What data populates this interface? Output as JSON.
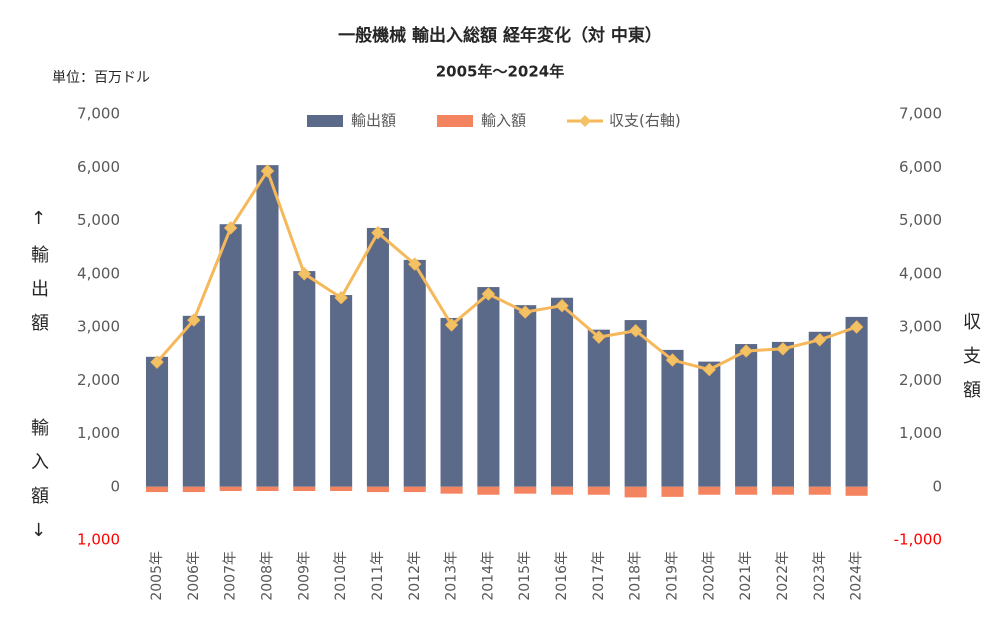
{
  "chart_data": {
    "type": "bar",
    "title": "一般機械 輸出入総額 経年変化（対 中東）",
    "subtitle": "2005年～2024年",
    "unit_label": "単位：百万ドル",
    "y_label_top": "↑輸出額",
    "y_label_bottom": "輸入額↓",
    "y2_label": "収支額",
    "categories": [
      "2005年",
      "2006年",
      "2007年",
      "2008年",
      "2009年",
      "2010年",
      "2011年",
      "2012年",
      "2013年",
      "2014年",
      "2015年",
      "2016年",
      "2017年",
      "2018年",
      "2019年",
      "2020年",
      "2021年",
      "2022年",
      "2023年",
      "2024年"
    ],
    "series": [
      {
        "name": "輸出額",
        "type": "bar",
        "color": "#5b6a88",
        "values": [
          2440,
          3210,
          4930,
          6040,
          4050,
          3600,
          4860,
          4260,
          3170,
          3750,
          3410,
          3550,
          2950,
          3130,
          2570,
          2350,
          2680,
          2720,
          2910,
          3190
        ]
      },
      {
        "name": "輸入額",
        "type": "bar",
        "color": "#f4845f",
        "values": [
          -100,
          -100,
          -80,
          -80,
          -80,
          -80,
          -100,
          -100,
          -130,
          -150,
          -130,
          -150,
          -150,
          -200,
          -190,
          -150,
          -150,
          -150,
          -150,
          -170
        ]
      },
      {
        "name": "収支(右軸)",
        "type": "line",
        "axis": "y2",
        "color": "#f5b85a",
        "values": [
          2340,
          3130,
          4860,
          5930,
          4000,
          3550,
          4770,
          4180,
          3040,
          3620,
          3280,
          3400,
          2810,
          2930,
          2380,
          2200,
          2550,
          2590,
          2760,
          3000
        ]
      }
    ],
    "ylim": [
      -1000,
      7000
    ],
    "yticks": [
      {
        "value": -1000,
        "label": "1,000"
      },
      0,
      {
        "value": 1000,
        "label": "1,000"
      },
      {
        "value": 2000,
        "label": "2,000"
      },
      {
        "value": 3000,
        "label": "3,000"
      },
      {
        "value": 4000,
        "label": "4,000"
      },
      {
        "value": 5000,
        "label": "5,000"
      },
      {
        "value": 6000,
        "label": "6,000"
      },
      {
        "value": 7000,
        "label": "7,000"
      }
    ],
    "y2lim": [
      -1000,
      7000
    ],
    "y2ticks": [
      {
        "value": -1000,
        "label": "-1,000"
      },
      0,
      {
        "value": 1000,
        "label": "1,000"
      },
      {
        "value": 2000,
        "label": "2,000"
      },
      {
        "value": 3000,
        "label": "3,000"
      },
      {
        "value": 4000,
        "label": "4,000"
      },
      {
        "value": 5000,
        "label": "5,000"
      },
      {
        "value": 6000,
        "label": "6,000"
      },
      {
        "value": 7000,
        "label": "7,000"
      }
    ],
    "negative_tick_color": "#ff0000",
    "legend": "top"
  }
}
